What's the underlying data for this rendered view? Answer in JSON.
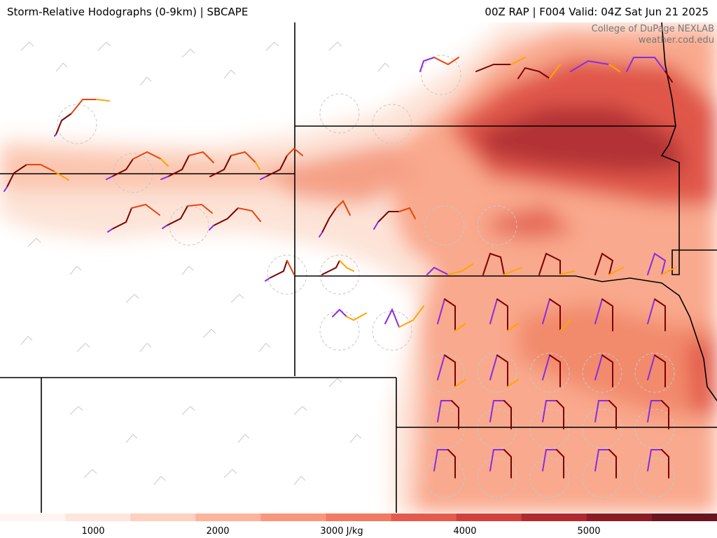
{
  "header": {
    "title_left": "Storm-Relative Hodographs (0-9km) | SBCAPE",
    "title_right": "00Z RAP | F004 Valid: 04Z Sat Jun 21 2025"
  },
  "credit": {
    "line1": "College of DuPage NEXLAB",
    "line2": "weather.cod.edu"
  },
  "colorbar": {
    "unit": "J/kg",
    "ticks": [
      "1000",
      "2000",
      "3000 J/kg",
      "4000",
      "5000"
    ],
    "colors": [
      "#fff5f0",
      "#fee6dc",
      "#fdd0bf",
      "#fcb49b",
      "#f9977a",
      "#f27a62",
      "#e45a4d",
      "#d2403c",
      "#b02a2f",
      "#8c1d24",
      "#6b1520"
    ]
  },
  "legend_colors": {
    "hodo_0_3km": "#7b0000",
    "hodo_3_6km": "#e8440c",
    "hodo_6_9km": "#ffa500",
    "hodo_storm_motion_segment": "#8a2be2"
  }
}
